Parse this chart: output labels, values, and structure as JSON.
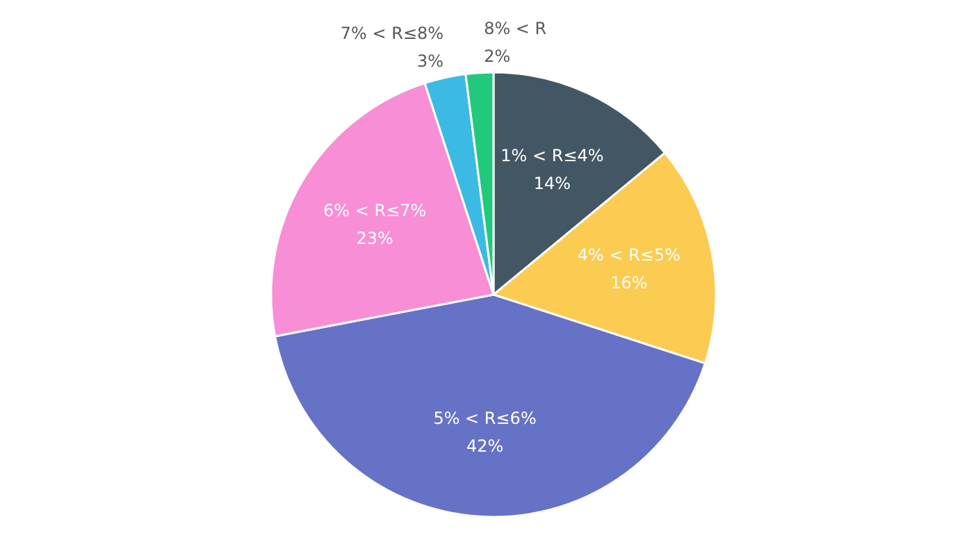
{
  "chart_data": {
    "type": "pie",
    "categories": [
      "1% < R≤4%",
      "4% < R≤5%",
      "5% < R≤6%",
      "6% < R≤7%",
      "7% < R≤8%",
      "8% < R"
    ],
    "values": [
      14,
      16,
      42,
      23,
      3,
      2
    ],
    "colors": [
      "#435663",
      "#fbcb52",
      "#6572c6",
      "#f78ed6",
      "#3bbbe3",
      "#22c97c"
    ],
    "value_labels": [
      "14%",
      "16%",
      "42%",
      "23%",
      "3%",
      "2%"
    ]
  }
}
